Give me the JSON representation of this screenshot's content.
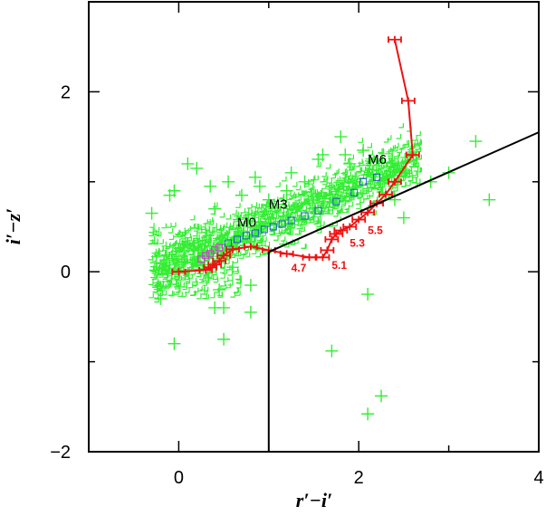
{
  "chart_data": {
    "type": "scatter",
    "xlabel": "r′−i′",
    "ylabel": "i′−z′",
    "xlim": [
      -1,
      4
    ],
    "ylim": [
      -2,
      3
    ],
    "x_ticks": [
      0,
      2,
      4
    ],
    "y_ticks": [
      -2,
      0,
      2
    ],
    "x_tick_labels": [
      "0",
      "2",
      "4"
    ],
    "y_tick_labels": [
      "−2",
      "0",
      "2"
    ],
    "grid": false,
    "colors": {
      "field_stars": "#33ee33",
      "dwarf_track": "#ee1111",
      "m_dwarfs": "#2255cc",
      "early_stars": "#cc44cc",
      "cut_lines": "#000000"
    },
    "series": [
      {
        "marker": "plus",
        "color": "#33ee33",
        "x": [
          -0.3,
          -0.25,
          -0.1,
          -0.05,
          0.1,
          0.2,
          0.45,
          0.5,
          0.8,
          1.2,
          1.4,
          1.6,
          1.8,
          1.9,
          2.1,
          2.4,
          2.5,
          2.8,
          3.0,
          3.3,
          3.45,
          0.4,
          0.7,
          0.5,
          0.9,
          1.0,
          0.8,
          0.4,
          -0.2,
          -0.05,
          0.35,
          0.55,
          0.85,
          1.25,
          1.55,
          1.85,
          2.05,
          0.15,
          0.6,
          1.7,
          2.25,
          2.1
        ],
        "y": [
          0.65,
          0.1,
          0.85,
          -0.8,
          1.2,
          1.15,
          -0.2,
          -0.75,
          -0.45,
          0.9,
          1.0,
          1.3,
          1.5,
          1.2,
          -0.25,
          0.8,
          0.6,
          1.0,
          1.1,
          1.45,
          0.8,
          0.7,
          0.85,
          -0.4,
          0.95,
          0.8,
          -0.15,
          -0.4,
          -0.3,
          0.9,
          0.95,
          1.0,
          1.05,
          1.1,
          1.25,
          1.3,
          1.35,
          0.1,
          0.05,
          -0.88,
          -1.38,
          -1.58
        ]
      },
      {
        "marker": "square",
        "color": "#2255cc",
        "x": [
          0.55,
          0.65,
          0.75,
          0.85,
          0.95,
          1.05,
          1.15,
          1.25,
          1.4,
          1.55,
          1.75,
          1.95,
          2.05,
          2.2
        ],
        "y": [
          0.32,
          0.36,
          0.4,
          0.43,
          0.47,
          0.5,
          0.53,
          0.57,
          0.62,
          0.68,
          0.78,
          0.88,
          1.0,
          1.05
        ]
      },
      {
        "marker": "square",
        "color": "#cc44cc",
        "x": [
          0.25,
          0.3,
          0.35,
          0.4,
          0.45
        ],
        "y": [
          0.14,
          0.18,
          0.2,
          0.24,
          0.27
        ]
      },
      {
        "marker": "errorbar-line",
        "color": "#ee1111",
        "x": [
          0.0,
          0.3,
          0.35,
          0.4,
          0.45,
          0.5,
          0.6,
          0.8,
          1.0,
          1.2,
          1.45,
          1.6,
          1.65,
          1.7,
          1.75,
          1.8,
          1.9,
          2.0,
          2.1,
          2.2,
          2.3,
          2.4,
          2.6,
          2.55,
          2.4
        ],
        "y": [
          0.0,
          0.02,
          0.05,
          0.08,
          0.12,
          0.18,
          0.25,
          0.28,
          0.24,
          0.2,
          0.16,
          0.16,
          0.24,
          0.36,
          0.42,
          0.46,
          0.5,
          0.58,
          0.66,
          0.76,
          0.86,
          1.0,
          1.3,
          1.9,
          2.58
        ]
      }
    ],
    "cut_lines": [
      {
        "x": [
          1.0,
          1.0
        ],
        "y": [
          -2.0,
          0.22
        ]
      },
      {
        "x": [
          1.0,
          4.0
        ],
        "y": [
          0.22,
          1.55
        ]
      }
    ],
    "annotations": [
      {
        "text": "M0",
        "x": 0.65,
        "y": 0.5,
        "kind": "spt"
      },
      {
        "text": "M3",
        "x": 1.0,
        "y": 0.7,
        "kind": "spt"
      },
      {
        "text": "M6",
        "x": 2.1,
        "y": 1.2,
        "kind": "spt"
      },
      {
        "text": "4.7",
        "x": 1.25,
        "y": 0.0,
        "kind": "teff"
      },
      {
        "text": "5.1",
        "x": 1.7,
        "y": 0.03,
        "kind": "teff"
      },
      {
        "text": "5.3",
        "x": 1.9,
        "y": 0.28,
        "kind": "teff"
      },
      {
        "text": "5.5",
        "x": 2.1,
        "y": 0.42,
        "kind": "teff"
      }
    ]
  }
}
